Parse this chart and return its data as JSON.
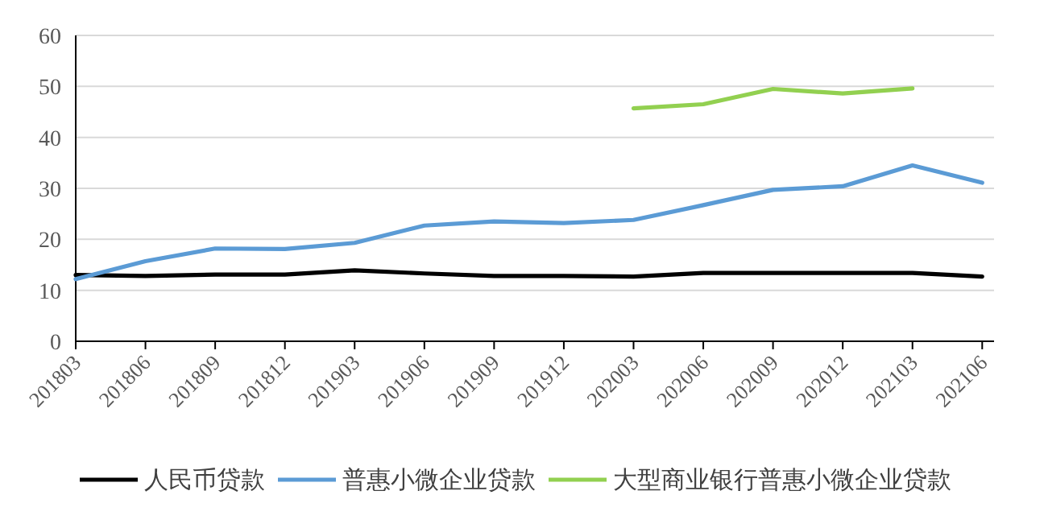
{
  "chart_data": {
    "type": "line",
    "categories": [
      "201803",
      "201806",
      "201809",
      "201812",
      "201903",
      "201906",
      "201909",
      "201912",
      "202003",
      "202006",
      "202009",
      "202012",
      "202103",
      "202106"
    ],
    "series": [
      {
        "name": "人民币贷款",
        "color": "#000000",
        "values": [
          13.0,
          12.8,
          13.1,
          13.1,
          13.9,
          13.3,
          12.8,
          12.8,
          12.7,
          13.4,
          13.4,
          13.4,
          13.4,
          12.7
        ]
      },
      {
        "name": "普惠小微企业贷款",
        "color": "#5b9bd5",
        "values": [
          12.2,
          15.7,
          18.2,
          18.1,
          19.3,
          22.7,
          23.5,
          23.2,
          23.8,
          26.7,
          29.7,
          30.4,
          34.5,
          31.1
        ]
      },
      {
        "name": "大型商业银行普惠小微企业贷款",
        "color": "#92d050",
        "values": [
          null,
          null,
          null,
          null,
          null,
          null,
          null,
          null,
          45.7,
          46.5,
          49.5,
          48.6,
          49.6,
          null
        ]
      }
    ],
    "ylim": [
      0,
      60
    ],
    "yticks": [
      0,
      10,
      20,
      30,
      40,
      50,
      60
    ],
    "grid": "y",
    "legend": "bottom"
  }
}
